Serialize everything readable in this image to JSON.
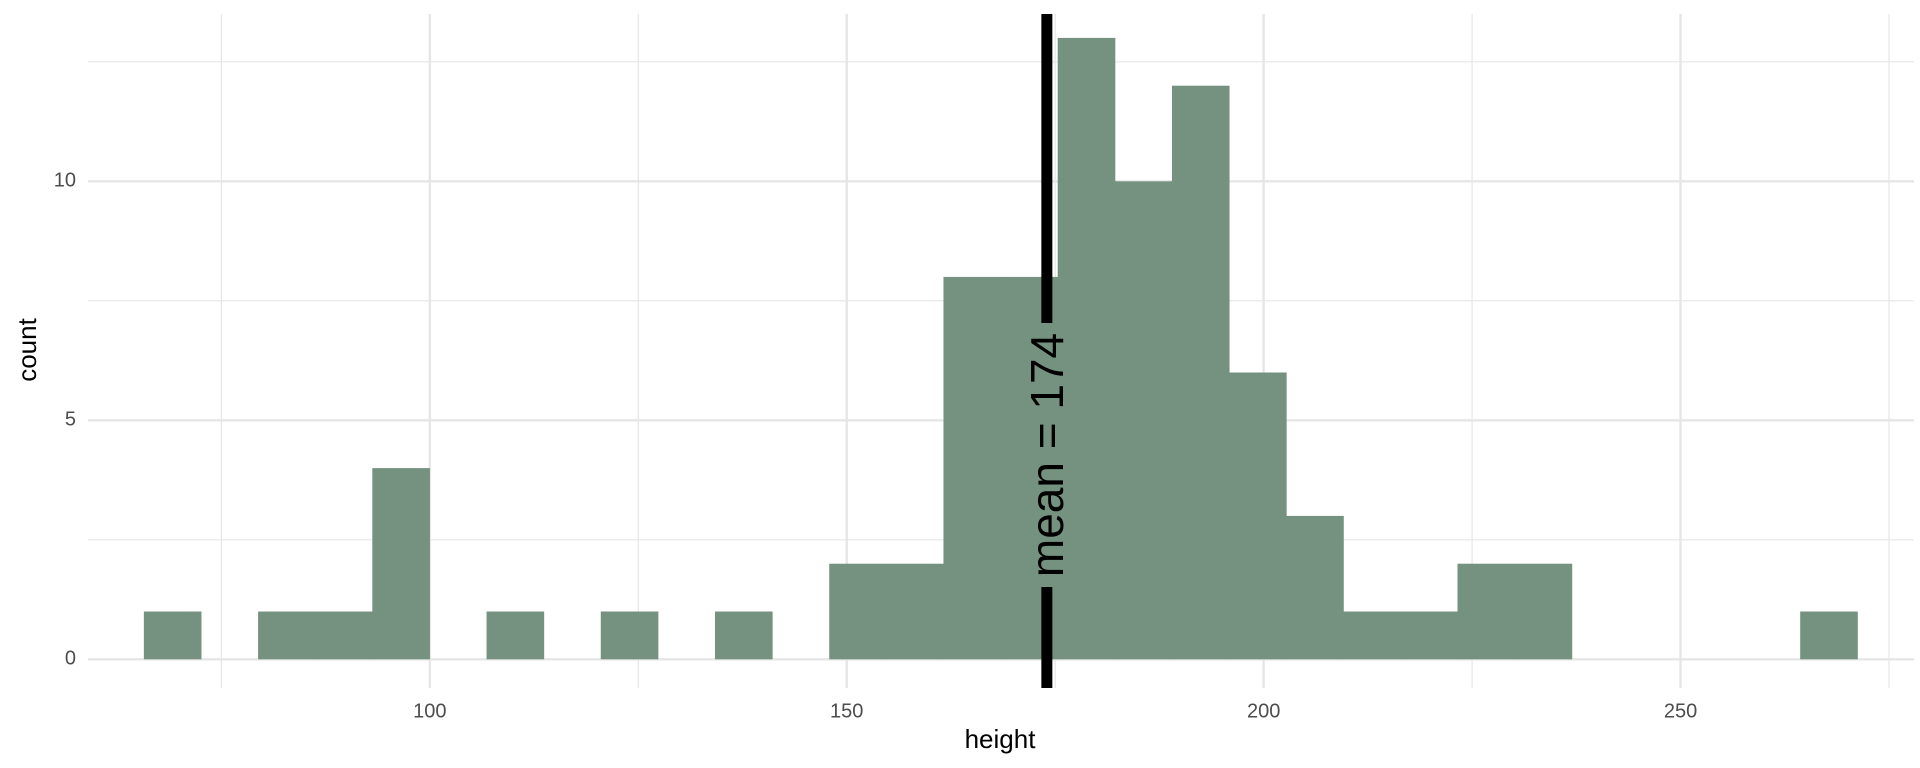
{
  "chart_data": {
    "type": "bar",
    "subtype": "histogram",
    "xlabel": "height",
    "ylabel": "count",
    "xlim": [
      59,
      278
    ],
    "ylim": [
      -0.6,
      13.5
    ],
    "x_ticks": [
      100,
      150,
      200,
      250
    ],
    "x_ticks_minor": [
      75,
      125,
      175,
      225,
      275
    ],
    "y_ticks": [
      0,
      5,
      10
    ],
    "y_ticks_minor": [
      2.5,
      7.5,
      12.5
    ],
    "grid": true,
    "bin_width": 6.85,
    "bins": [
      {
        "start": 65.7,
        "count": 1
      },
      {
        "start": 72.55,
        "count": 0
      },
      {
        "start": 79.4,
        "count": 1
      },
      {
        "start": 86.25,
        "count": 1
      },
      {
        "start": 93.1,
        "count": 4
      },
      {
        "start": 99.95,
        "count": 0
      },
      {
        "start": 106.8,
        "count": 1
      },
      {
        "start": 113.65,
        "count": 0
      },
      {
        "start": 120.5,
        "count": 1
      },
      {
        "start": 127.35,
        "count": 0
      },
      {
        "start": 134.2,
        "count": 1
      },
      {
        "start": 141.05,
        "count": 0
      },
      {
        "start": 147.9,
        "count": 2
      },
      {
        "start": 154.75,
        "count": 2
      },
      {
        "start": 161.6,
        "count": 8
      },
      {
        "start": 168.45,
        "count": 8
      },
      {
        "start": 175.3,
        "count": 13
      },
      {
        "start": 182.15,
        "count": 10
      },
      {
        "start": 189.0,
        "count": 12
      },
      {
        "start": 195.85,
        "count": 6
      },
      {
        "start": 202.7,
        "count": 3
      },
      {
        "start": 209.55,
        "count": 1
      },
      {
        "start": 216.4,
        "count": 1
      },
      {
        "start": 223.25,
        "count": 2
      },
      {
        "start": 230.1,
        "count": 2
      },
      {
        "start": 236.95,
        "count": 0
      },
      {
        "start": 243.8,
        "count": 0
      },
      {
        "start": 250.65,
        "count": 0
      },
      {
        "start": 257.5,
        "count": 0
      },
      {
        "start": 264.35,
        "count": 1
      }
    ],
    "mean": 174,
    "mean_label": "mean = 174",
    "colors": {
      "bar": "#74927F",
      "mean_line": "#000000",
      "grid": "#e6e6e6"
    }
  }
}
